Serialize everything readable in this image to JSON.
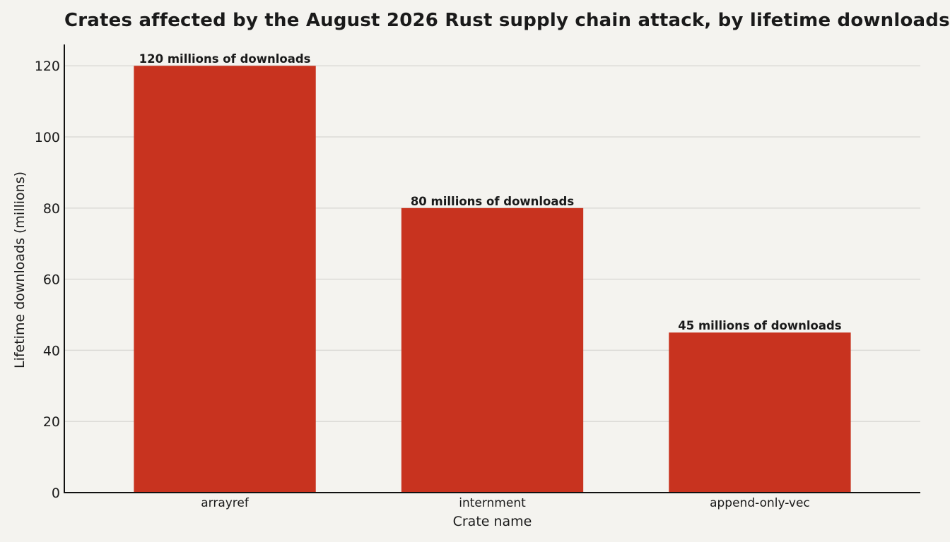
{
  "chart_data": {
    "type": "bar",
    "title": "Crates affected by the August 2026 Rust supply chain attack, by lifetime downloads",
    "xlabel": "Crate name",
    "ylabel": "Lifetime downloads (millions)",
    "categories": [
      "arrayref",
      "internment",
      "append-only-vec"
    ],
    "values": [
      120,
      80,
      45
    ],
    "data_labels": [
      "120 millions of downloads",
      "80 millions of downloads",
      "45 millions of downloads"
    ],
    "ylim": [
      0,
      126
    ],
    "yticks": [
      0,
      20,
      40,
      60,
      80,
      100,
      120
    ],
    "grid": true,
    "bar_color": "#c8331f"
  }
}
